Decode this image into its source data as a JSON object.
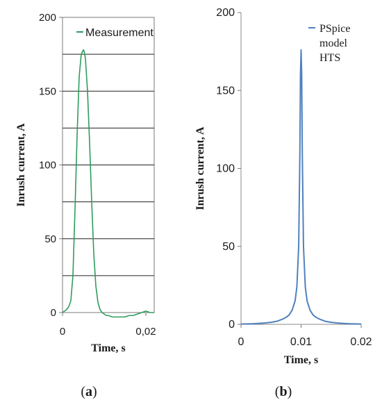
{
  "chart_data": [
    {
      "type": "line",
      "panel": "a",
      "caption": {
        "open": "(",
        "letter": "a",
        "close": ")"
      },
      "xlabel": "Time, s",
      "ylabel": "Inrush current, A",
      "xlim": [
        0,
        0.022
      ],
      "ylim": [
        0,
        200
      ],
      "x_ticks": [
        0,
        0.02
      ],
      "x_tick_labels": [
        "0",
        "0,02"
      ],
      "y_ticks": [
        0,
        50,
        100,
        150,
        200
      ],
      "y_tick_labels": [
        "0",
        "50",
        "100",
        "150",
        "200"
      ],
      "grid": "horizontal",
      "legend": "top-right",
      "color": "#2e9c5e",
      "series": [
        {
          "name": "Measurement",
          "x": [
            0,
            0.0005,
            0.001,
            0.0015,
            0.002,
            0.0025,
            0.003,
            0.0035,
            0.004,
            0.0045,
            0.005,
            0.0052,
            0.0055,
            0.006,
            0.0065,
            0.007,
            0.0075,
            0.008,
            0.0085,
            0.009,
            0.0095,
            0.01,
            0.0105,
            0.011,
            0.012,
            0.013,
            0.014,
            0.015,
            0.016,
            0.017,
            0.018,
            0.019,
            0.02,
            0.021,
            0.022
          ],
          "values": [
            0,
            1,
            2,
            4,
            8,
            25,
            70,
            120,
            160,
            175,
            178,
            177,
            172,
            150,
            115,
            75,
            40,
            18,
            7,
            2,
            0,
            -1,
            -2,
            -2,
            -3,
            -3,
            -3,
            -3,
            -2,
            -2,
            -1,
            0,
            1,
            0,
            0
          ]
        }
      ]
    },
    {
      "type": "line",
      "panel": "b",
      "caption": {
        "open": "(",
        "letter": "b",
        "close": ")"
      },
      "xlabel": "Time, s",
      "ylabel": "Inrush current, A",
      "xlim": [
        0,
        0.02
      ],
      "ylim": [
        0,
        200
      ],
      "x_ticks": [
        0,
        0.01,
        0.02
      ],
      "x_tick_labels": [
        "0",
        "0.01",
        "0.02"
      ],
      "y_ticks": [
        0,
        50,
        100,
        150,
        200
      ],
      "y_tick_labels": [
        "0",
        "50",
        "100",
        "150",
        "200"
      ],
      "grid": "none",
      "legend": "top-right",
      "color": "#4f81bd",
      "series": [
        {
          "name": "PSpice model HTS",
          "legend_lines": [
            "PSpice",
            "model",
            "HTS"
          ],
          "x": [
            0,
            0.001,
            0.002,
            0.003,
            0.004,
            0.005,
            0.006,
            0.007,
            0.0075,
            0.008,
            0.0085,
            0.009,
            0.0093,
            0.0096,
            0.0098,
            0.0099,
            0.01,
            0.0101,
            0.0102,
            0.0104,
            0.0107,
            0.011,
            0.0115,
            0.012,
            0.0125,
            0.013,
            0.014,
            0.015,
            0.016,
            0.017,
            0.018,
            0.019,
            0.02
          ],
          "values": [
            0.2,
            0.3,
            0.4,
            0.6,
            0.9,
            1.3,
            2,
            3.5,
            4.5,
            6,
            9,
            15,
            24,
            50,
            110,
            160,
            176,
            160,
            110,
            50,
            24,
            15,
            9,
            6,
            4.5,
            3.5,
            2,
            1.3,
            0.9,
            0.6,
            0.4,
            0.3,
            0.2
          ]
        }
      ]
    }
  ]
}
